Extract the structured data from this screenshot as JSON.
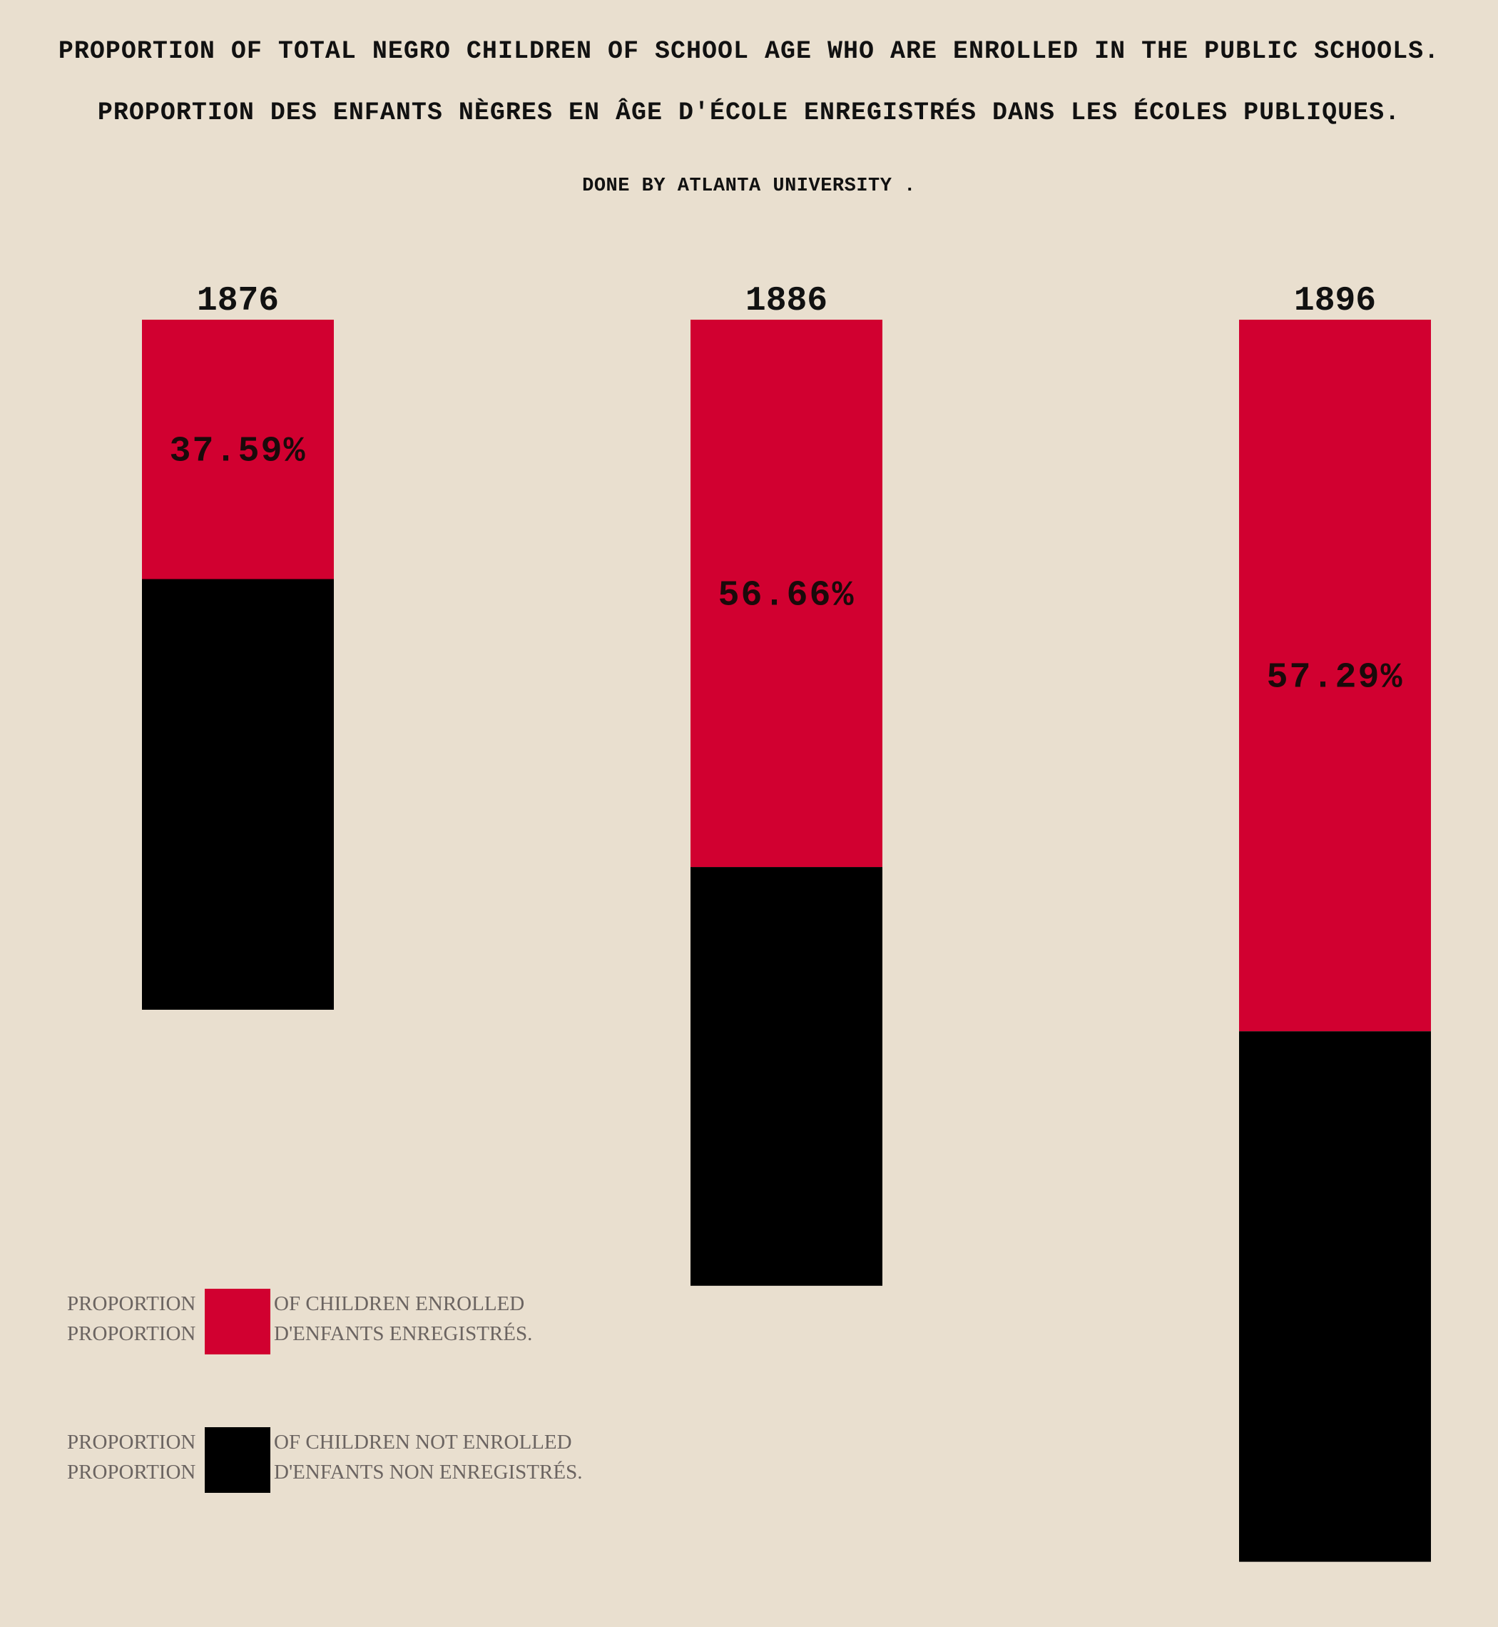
{
  "title_en": "PROPORTION OF TOTAL NEGRO CHILDREN OF SCHOOL AGE WHO ARE ENROLLED IN THE PUBLIC SCHOOLS.",
  "title_fr": "PROPORTION DES ENFANTS NÈGRES EN ÂGE D'ÉCOLE ENREGISTRÉS DANS LES ÉCOLES PUBLIQUES.",
  "credit": "DONE BY ATLANTA UNIVERSITY .",
  "colors": {
    "background": "#e9dfcf",
    "enrolled": "#d10030",
    "not_enrolled": "#000000"
  },
  "legend": {
    "enrolled": {
      "left_line1": "PROPORTION",
      "left_line2": "PROPORTION",
      "right_line1": "OF CHILDREN ENROLLED",
      "right_line2": "D'ENFANTS ENREGISTRÉS."
    },
    "not_enrolled": {
      "left_line1": "PROPORTION",
      "left_line2": "PROPORTION",
      "right_line1": "OF CHILDREN NOT ENROLLED",
      "right_line2": "D'ENFANTS NON ENREGISTRÉS."
    }
  },
  "chart_data": {
    "type": "bar",
    "stacked": true,
    "orientation": "vertical",
    "categories": [
      "1876",
      "1886",
      "1896"
    ],
    "series": [
      {
        "key": "enrolled",
        "values": [
          37.59,
          56.66,
          57.29
        ],
        "color": "#d10030"
      },
      {
        "key": "not_enrolled",
        "values": [
          62.41,
          43.34,
          42.71
        ],
        "color": "#000000"
      }
    ],
    "data_labels": [
      "37.59%",
      "56.66%",
      "57.29%"
    ],
    "relative_totals": [
      1.0,
      1.4,
      1.8
    ]
  }
}
